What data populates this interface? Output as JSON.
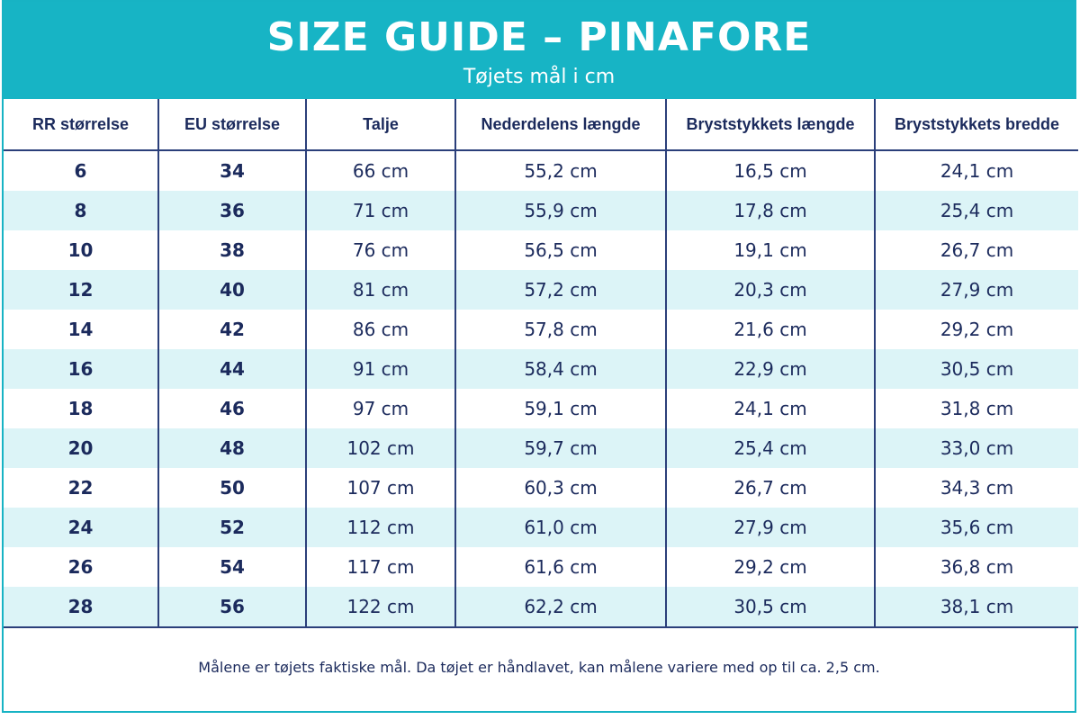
{
  "header": {
    "title": "SIZE GUIDE – PINAFORE",
    "subtitle": "Tøjets mål i cm"
  },
  "table": {
    "columns": [
      "RR størrelse",
      "EU størrelse",
      "Talje",
      "Nederdelens længde",
      "Bryststykkets længde",
      "Bryststykkets bredde"
    ],
    "rows": [
      [
        "6",
        "34",
        "66 cm",
        "55,2 cm",
        "16,5 cm",
        "24,1 cm"
      ],
      [
        "8",
        "36",
        "71 cm",
        "55,9 cm",
        "17,8 cm",
        "25,4 cm"
      ],
      [
        "10",
        "38",
        "76 cm",
        "56,5 cm",
        "19,1 cm",
        "26,7 cm"
      ],
      [
        "12",
        "40",
        "81 cm",
        "57,2 cm",
        "20,3 cm",
        "27,9 cm"
      ],
      [
        "14",
        "42",
        "86 cm",
        "57,8 cm",
        "21,6 cm",
        "29,2 cm"
      ],
      [
        "16",
        "44",
        "91 cm",
        "58,4 cm",
        "22,9 cm",
        "30,5 cm"
      ],
      [
        "18",
        "46",
        "97 cm",
        "59,1 cm",
        "24,1 cm",
        "31,8 cm"
      ],
      [
        "20",
        "48",
        "102 cm",
        "59,7 cm",
        "25,4 cm",
        "33,0 cm"
      ],
      [
        "22",
        "50",
        "107 cm",
        "60,3 cm",
        "26,7 cm",
        "34,3 cm"
      ],
      [
        "24",
        "52",
        "112 cm",
        "61,0 cm",
        "27,9 cm",
        "35,6 cm"
      ],
      [
        "26",
        "54",
        "117 cm",
        "61,6 cm",
        "29,2 cm",
        "36,8 cm"
      ],
      [
        "28",
        "56",
        "122 cm",
        "62,2 cm",
        "30,5 cm",
        "38,1 cm"
      ]
    ]
  },
  "footer": {
    "note": "Målene er tøjets faktiske mål. Da tøjet er håndlavet, kan målene variere med op til ca. 2,5 cm."
  },
  "colors": {
    "header_bg": "#17b4c5",
    "row_stripe": "#dcf4f7",
    "text": "#1b2a5c"
  }
}
